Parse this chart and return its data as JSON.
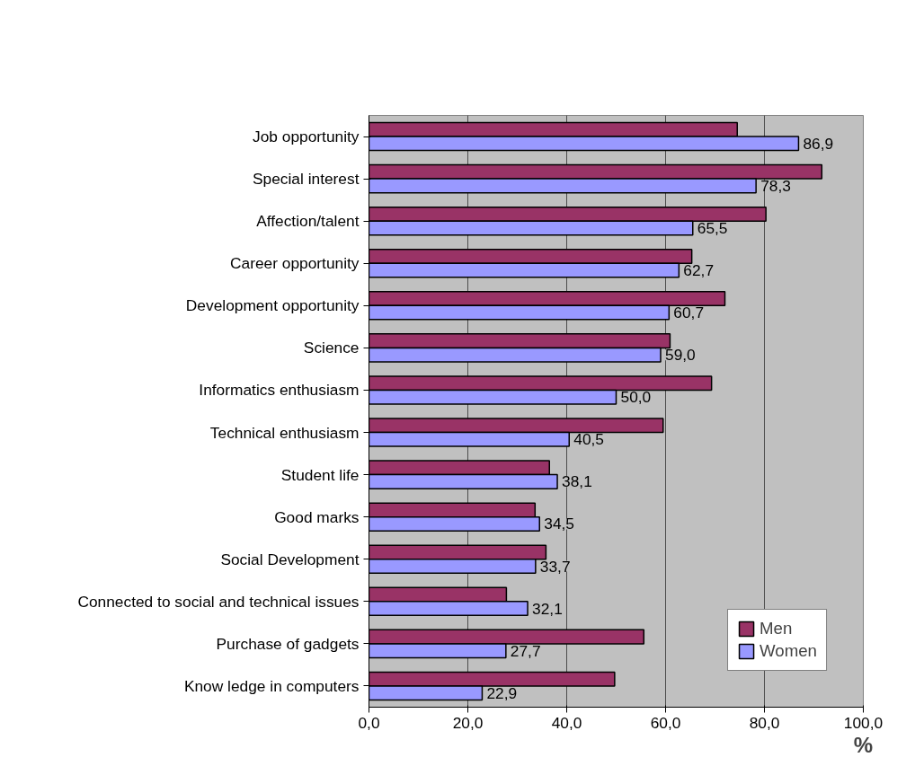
{
  "chart_data": {
    "type": "bar",
    "orientation": "horizontal",
    "xlabel": "%",
    "categories": [
      "Job opportunity",
      "Special interest",
      "Affection/talent",
      "Career opportunity",
      "Development opportunity",
      "Science",
      "Informatics enthusiasm",
      "Technical enthusiasm",
      "Student life",
      "Good marks",
      "Social Development",
      "Connected to social and technical issues",
      "Purchase of gadgets",
      "Know ledge in computers"
    ],
    "series": [
      {
        "name": "Men",
        "color": "#993366",
        "values": [
          74.5,
          91.6,
          80.3,
          65.3,
          72.0,
          60.9,
          69.3,
          59.5,
          36.5,
          33.6,
          35.8,
          27.8,
          55.6,
          49.7
        ]
      },
      {
        "name": "Women",
        "color": "#9999ff",
        "values": [
          86.9,
          78.3,
          65.5,
          62.7,
          60.7,
          59.0,
          50.0,
          40.5,
          38.1,
          34.5,
          33.7,
          32.1,
          27.7,
          22.9
        ],
        "value_labels": [
          "86,9",
          "78,3",
          "65,5",
          "62,7",
          "60,7",
          "59,0",
          "50,0",
          "40,5",
          "38,1",
          "34,5",
          "33,7",
          "32,1",
          "27,7",
          "22,9"
        ]
      }
    ],
    "xlim": [
      0,
      100
    ],
    "xticks": [
      {
        "value": 0,
        "label": "0,0"
      },
      {
        "value": 20,
        "label": "20,0"
      },
      {
        "value": 40,
        "label": "40,0"
      },
      {
        "value": 60,
        "label": "60,0"
      },
      {
        "value": 80,
        "label": "80,0"
      },
      {
        "value": 100,
        "label": "100,0"
      }
    ],
    "grid": "x",
    "legend": "bottom right"
  }
}
